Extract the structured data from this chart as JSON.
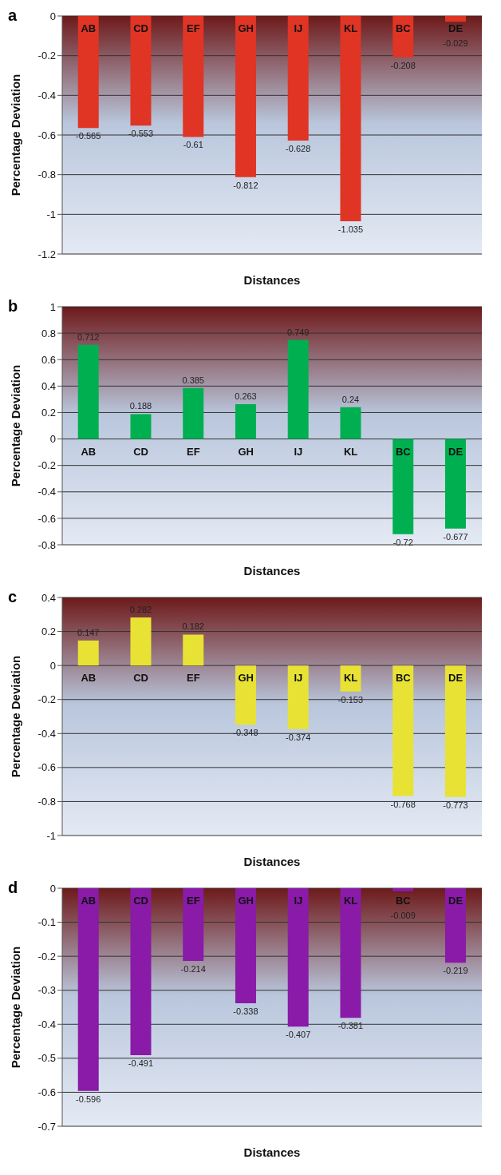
{
  "chart_data": [
    {
      "type": "bar",
      "title": "a",
      "xlabel": "Distances",
      "ylabel": "Percentage Deviation",
      "categories": [
        "AB",
        "CD",
        "EF",
        "GH",
        "IJ",
        "KL",
        "BC",
        "DE"
      ],
      "values": [
        -0.565,
        -0.553,
        -0.61,
        -0.812,
        -0.628,
        -1.035,
        -0.208,
        -0.029
      ],
      "color": "#e03424",
      "ylim": [
        -1.2,
        0
      ],
      "yticks": [
        -1.2,
        -1,
        -0.8,
        -0.6,
        -0.4,
        -0.2,
        0
      ],
      "grid": "y",
      "data_labels": true
    },
    {
      "type": "bar",
      "title": "b",
      "xlabel": "Distances",
      "ylabel": "Percentage Deviation",
      "categories": [
        "AB",
        "CD",
        "EF",
        "GH",
        "IJ",
        "KL",
        "BC",
        "DE"
      ],
      "values": [
        0.712,
        0.188,
        0.385,
        0.263,
        0.749,
        0.24,
        -0.72,
        -0.677
      ],
      "color": "#00b050",
      "ylim": [
        -0.8,
        1
      ],
      "yticks": [
        -0.8,
        -0.6,
        -0.4,
        -0.2,
        0,
        0.2,
        0.4,
        0.6,
        0.8,
        1
      ],
      "grid": "y",
      "data_labels": true
    },
    {
      "type": "bar",
      "title": "c",
      "xlabel": "Distances",
      "ylabel": "Percentage Deviation",
      "categories": [
        "AB",
        "CD",
        "EF",
        "GH",
        "IJ",
        "KL",
        "BC",
        "DE"
      ],
      "values": [
        0.147,
        0.282,
        0.182,
        -0.348,
        -0.374,
        -0.153,
        -0.768,
        -0.773
      ],
      "color": "#e8e234",
      "ylim": [
        -1,
        0.4
      ],
      "yticks": [
        -1,
        -0.8,
        -0.6,
        -0.4,
        -0.2,
        0,
        0.2,
        0.4
      ],
      "grid": "y",
      "data_labels": true
    },
    {
      "type": "bar",
      "title": "d",
      "xlabel": "Distances",
      "ylabel": "Percentage Deviation",
      "categories": [
        "AB",
        "CD",
        "EF",
        "GH",
        "IJ",
        "KL",
        "BC",
        "DE"
      ],
      "values": [
        -0.596,
        -0.491,
        -0.214,
        -0.338,
        -0.407,
        -0.381,
        -0.009,
        -0.219
      ],
      "color": "#8a1aa8",
      "ylim": [
        -0.7,
        0
      ],
      "yticks": [
        -0.7,
        -0.6,
        -0.5,
        -0.4,
        -0.3,
        -0.2,
        -0.1,
        0
      ],
      "grid": "y",
      "data_labels": true
    }
  ]
}
